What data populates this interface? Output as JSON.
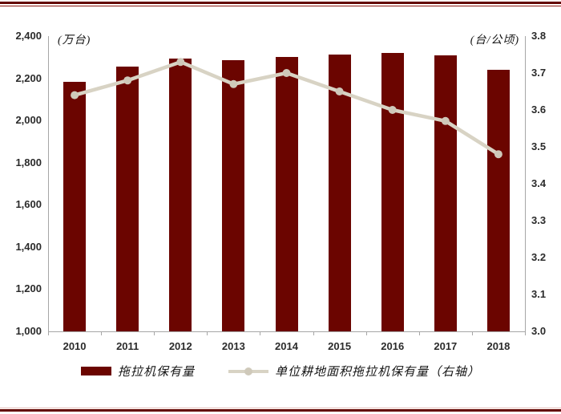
{
  "chart_data": {
    "type": "bar",
    "note": "combo chart: bars on left axis, line on right axis",
    "categories": [
      "2010",
      "2011",
      "2012",
      "2013",
      "2014",
      "2015",
      "2016",
      "2017",
      "2018"
    ],
    "series": [
      {
        "name": "拖拉机保有量",
        "type": "bar",
        "axis": "left",
        "color": "#6b0500",
        "values": [
          2185,
          2255,
          2292,
          2284,
          2300,
          2311,
          2321,
          2307,
          2240
        ]
      },
      {
        "name": "单位耕地面积拖拉机保有量（右轴）",
        "type": "line",
        "axis": "right",
        "color": "#d8d3c4",
        "values": [
          3.64,
          3.68,
          3.73,
          3.67,
          3.7,
          3.65,
          3.6,
          3.57,
          3.48
        ]
      }
    ],
    "left_axis": {
      "unit_label": "(万台)",
      "min": 1000,
      "max": 2400,
      "step": 200,
      "tick_labels": [
        "2,400",
        "2,200",
        "2,000",
        "1,800",
        "1,600",
        "1,400",
        "1,200",
        "1,000"
      ]
    },
    "right_axis": {
      "unit_label": "(台/公顷)",
      "min": 3.0,
      "max": 3.8,
      "step": 0.1,
      "tick_labels": [
        "3.8",
        "3.7",
        "3.6",
        "3.5",
        "3.4",
        "3.3",
        "3.2",
        "3.1",
        "3.0"
      ]
    },
    "grid": false,
    "legend_position": "bottom",
    "title": ""
  },
  "decor": {
    "accent_color": "#630400",
    "axis_color": "#a6a6a6"
  }
}
